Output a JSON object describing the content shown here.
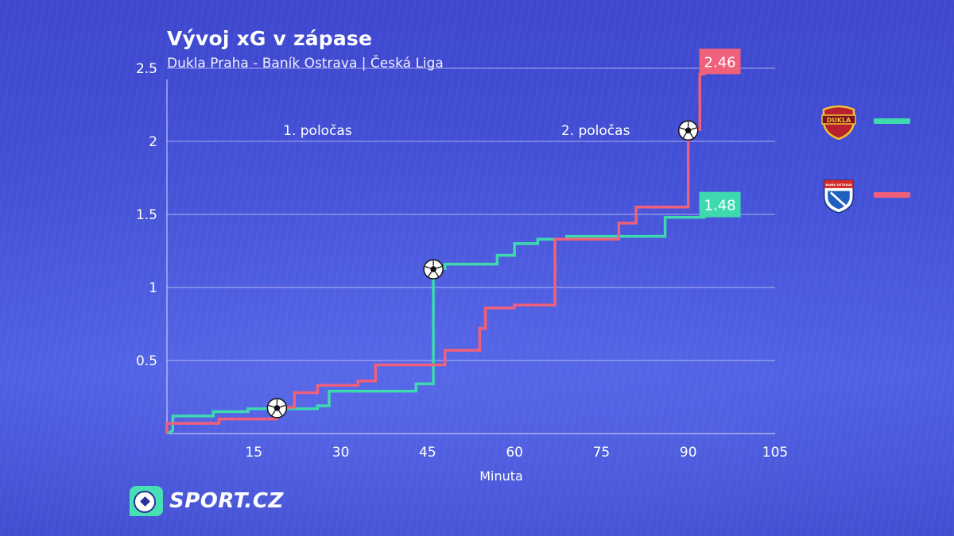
{
  "header": {
    "title": "Vývoj xG v zápase",
    "subtitle": "Dukla Praha - Baník Ostrava | Česká Liga"
  },
  "brand": {
    "name": "SPORT.CZ",
    "icon": "soccer-ball-logo-icon",
    "color": "#46e0b4"
  },
  "legend": [
    {
      "team": "Dukla Praha",
      "logo_text": "DUKLA",
      "icon": "dukla-crest-icon",
      "color": "#3fd9b0"
    },
    {
      "team": "Baník Ostrava",
      "logo_text": "BANÍK OSTRAVA",
      "icon": "banik-crest-icon",
      "color": "#f0607a"
    }
  ],
  "chart_data": {
    "type": "line",
    "step": true,
    "xlabel": "Minuta",
    "ylabel": "",
    "xlim": [
      0,
      105
    ],
    "ylim": [
      0,
      2.5
    ],
    "xticks": [
      15,
      30,
      45,
      60,
      75,
      90,
      105
    ],
    "yticks": [
      0.5,
      1,
      1.5,
      2,
      2.5
    ],
    "grid": "horizontal",
    "annotations": [
      {
        "text": "1. poločas",
        "x": 26
      },
      {
        "text": "2. poločas",
        "x": 74
      }
    ],
    "series": [
      {
        "name": "Dukla Praha",
        "color": "#3fd9b0",
        "final_label": "1.48",
        "points": [
          [
            0,
            0
          ],
          [
            1,
            0.02
          ],
          [
            1,
            0.12
          ],
          [
            8,
            0.12
          ],
          [
            8,
            0.15
          ],
          [
            14,
            0.15
          ],
          [
            14,
            0.17
          ],
          [
            26,
            0.17
          ],
          [
            26,
            0.19
          ],
          [
            28,
            0.19
          ],
          [
            28,
            0.29
          ],
          [
            43,
            0.29
          ],
          [
            43,
            0.34
          ],
          [
            46,
            0.34
          ],
          [
            46,
            1.13
          ],
          [
            48,
            1.13
          ],
          [
            48,
            1.16
          ],
          [
            57,
            1.16
          ],
          [
            57,
            1.22
          ],
          [
            60,
            1.22
          ],
          [
            60,
            1.3
          ],
          [
            64,
            1.3
          ],
          [
            64,
            1.33
          ],
          [
            69,
            1.33
          ],
          [
            69,
            1.35
          ],
          [
            86,
            1.35
          ],
          [
            86,
            1.48
          ],
          [
            93,
            1.48
          ]
        ],
        "goals": [
          46
        ]
      },
      {
        "name": "Baník Ostrava",
        "color": "#f0607a",
        "final_label": "2.46",
        "points": [
          [
            0,
            0
          ],
          [
            0,
            0.07
          ],
          [
            9,
            0.07
          ],
          [
            9,
            0.1
          ],
          [
            19,
            0.1
          ],
          [
            19,
            0.18
          ],
          [
            22,
            0.18
          ],
          [
            22,
            0.28
          ],
          [
            26,
            0.28
          ],
          [
            26,
            0.33
          ],
          [
            33,
            0.33
          ],
          [
            33,
            0.36
          ],
          [
            36,
            0.36
          ],
          [
            36,
            0.47
          ],
          [
            48,
            0.47
          ],
          [
            48,
            0.57
          ],
          [
            54,
            0.57
          ],
          [
            54,
            0.72
          ],
          [
            55,
            0.72
          ],
          [
            55,
            0.86
          ],
          [
            60,
            0.86
          ],
          [
            60,
            0.88
          ],
          [
            67,
            0.88
          ],
          [
            67,
            1.33
          ],
          [
            78,
            1.33
          ],
          [
            78,
            1.44
          ],
          [
            81,
            1.44
          ],
          [
            81,
            1.55
          ],
          [
            90,
            1.55
          ],
          [
            90,
            2.08
          ],
          [
            92,
            2.08
          ],
          [
            92,
            2.46
          ],
          [
            93,
            2.46
          ]
        ],
        "goals": [
          19,
          90
        ]
      }
    ]
  }
}
